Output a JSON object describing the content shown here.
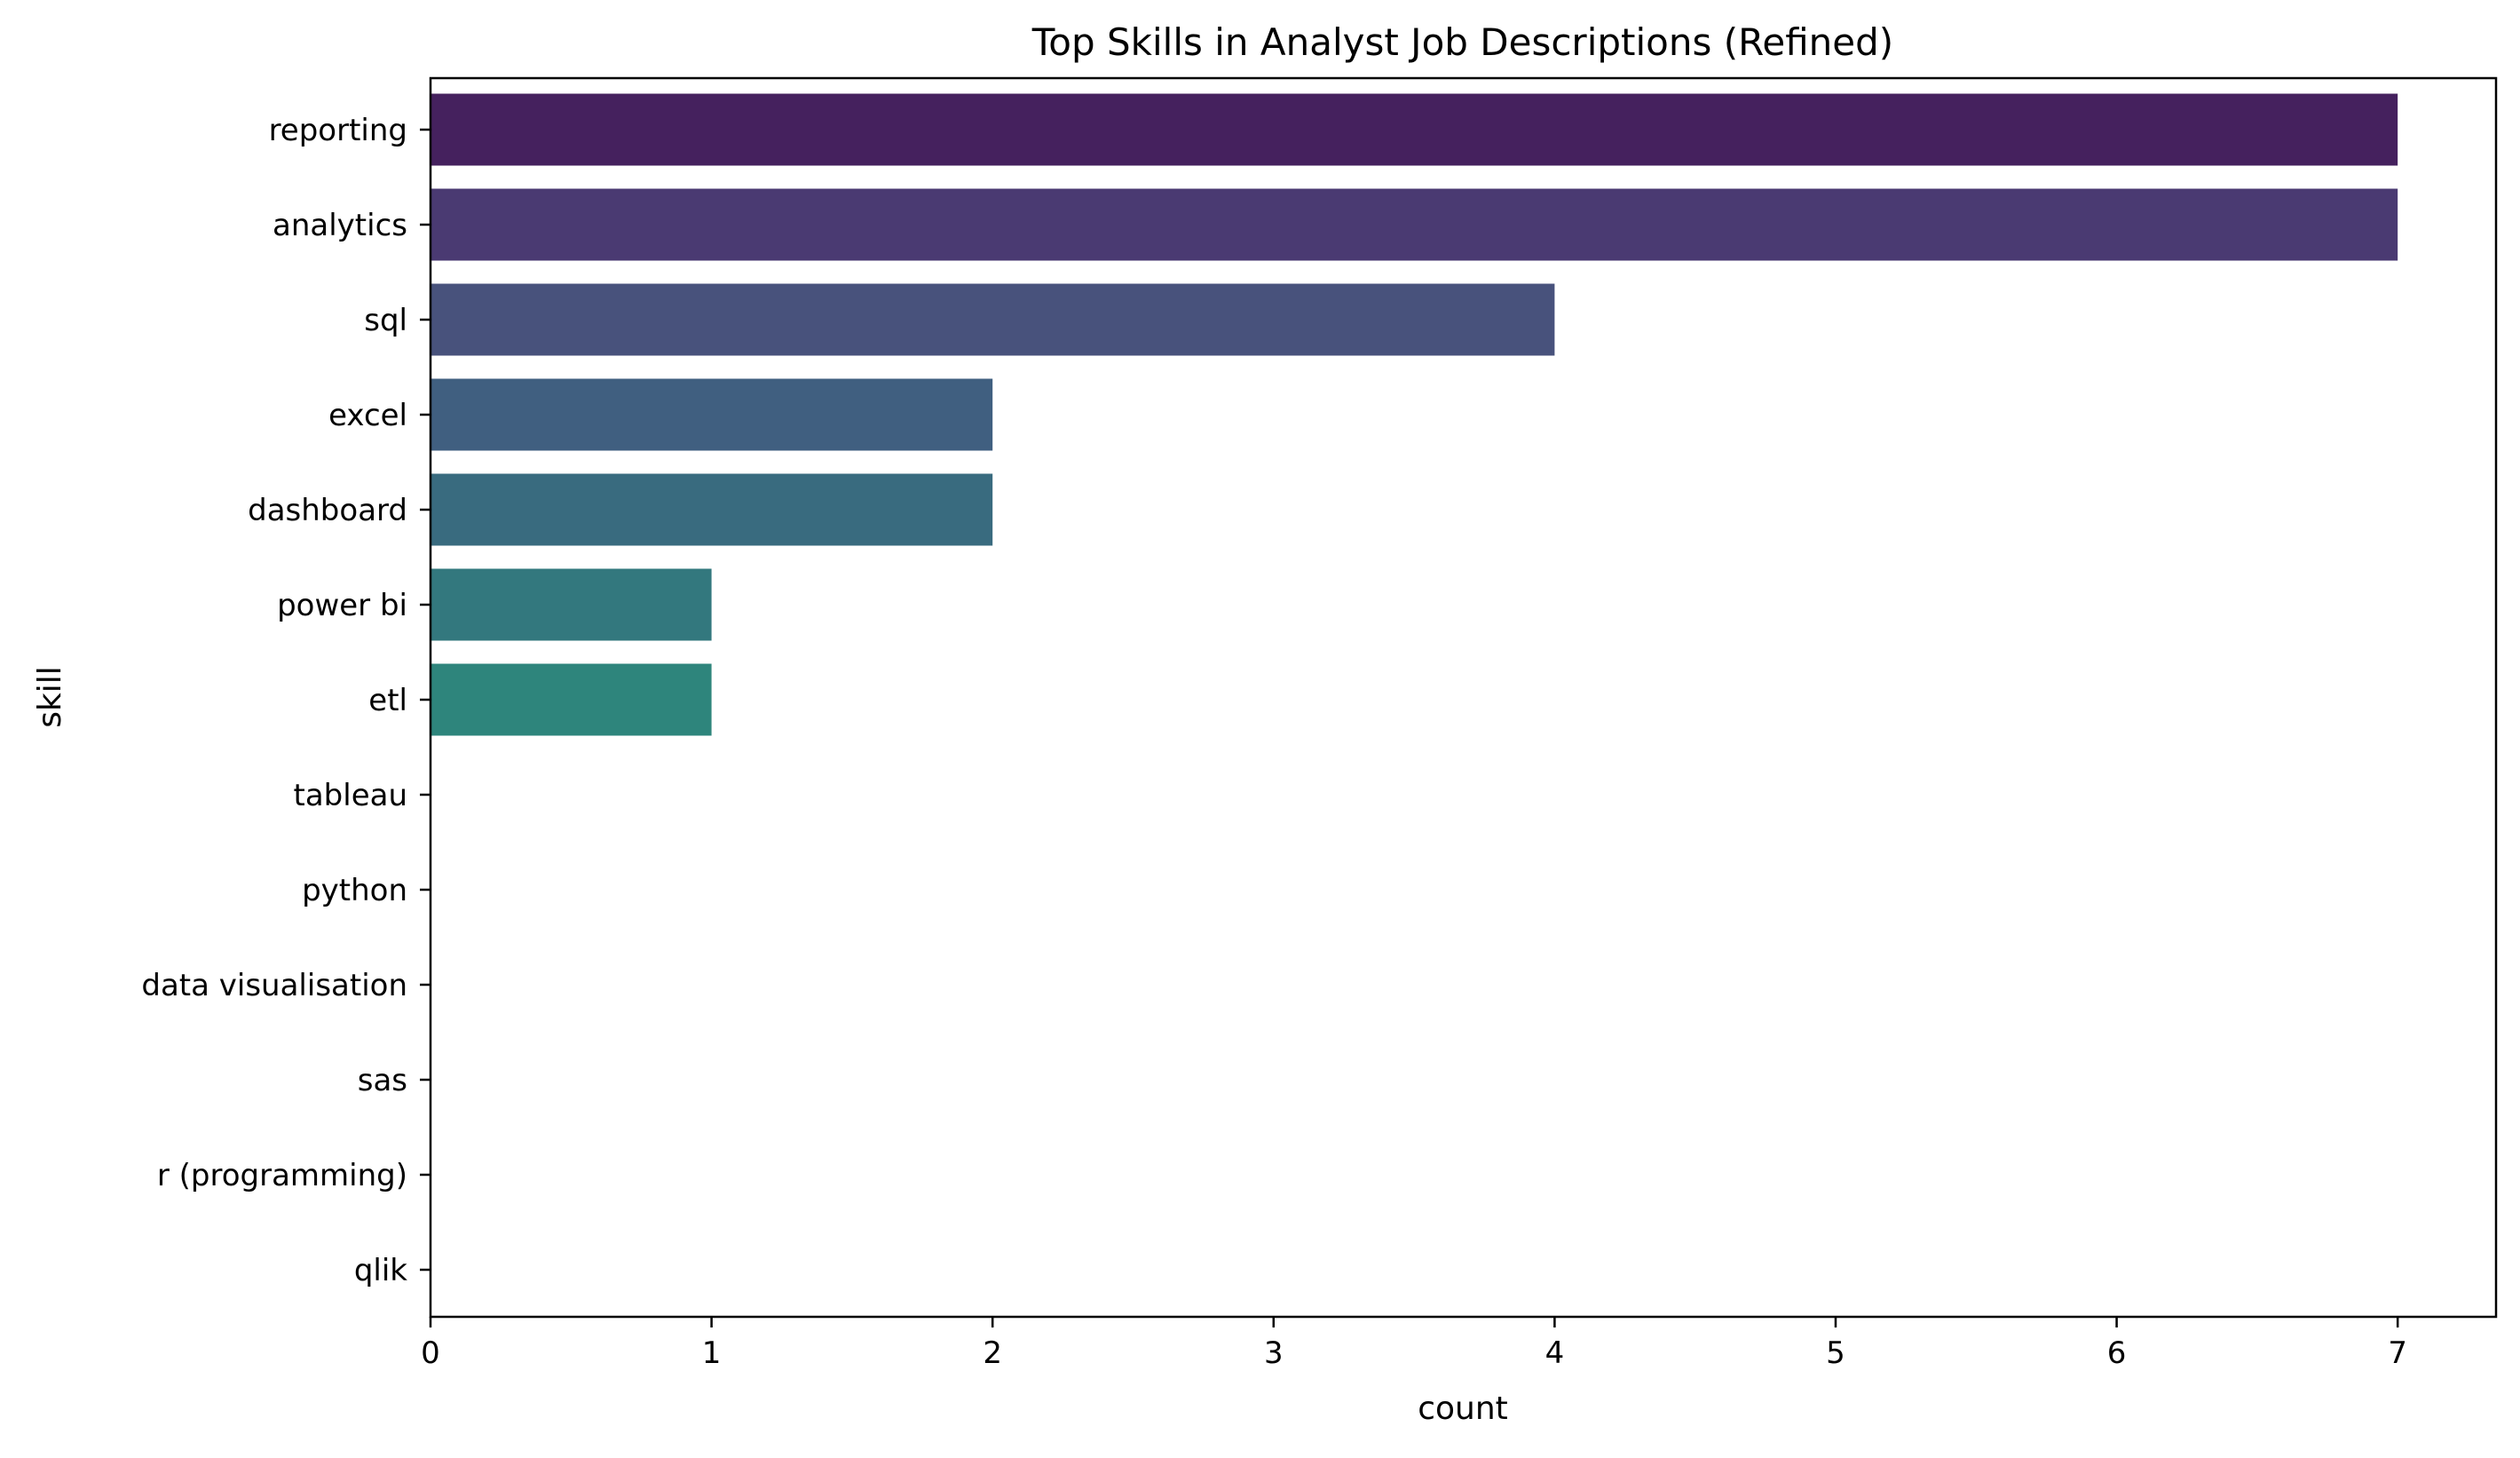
{
  "chart_data": {
    "type": "bar",
    "orientation": "horizontal",
    "title": "Top Skills in Analyst Job Descriptions (Refined)",
    "xlabel": "count",
    "ylabel": "skill",
    "categories": [
      "reporting",
      "analytics",
      "sql",
      "excel",
      "dashboard",
      "power bi",
      "etl",
      "tableau",
      "python",
      "data visualisation",
      "sas",
      "r (programming)",
      "qlik"
    ],
    "values": [
      7,
      7,
      4,
      2,
      2,
      1,
      1,
      0,
      0,
      0,
      0,
      0,
      0
    ],
    "colors": [
      "#45215e",
      "#4a3a72",
      "#48527c",
      "#405f80",
      "#396b7f",
      "#33787e",
      "#2e857c",
      "#2e857c",
      "#2e857c",
      "#2e857c",
      "#2e857c",
      "#2e857c",
      "#2e857c"
    ],
    "xticks": [
      0,
      1,
      2,
      3,
      4,
      5,
      6,
      7
    ],
    "xlim": [
      0,
      7.35
    ],
    "grid": false,
    "legend": "none"
  }
}
